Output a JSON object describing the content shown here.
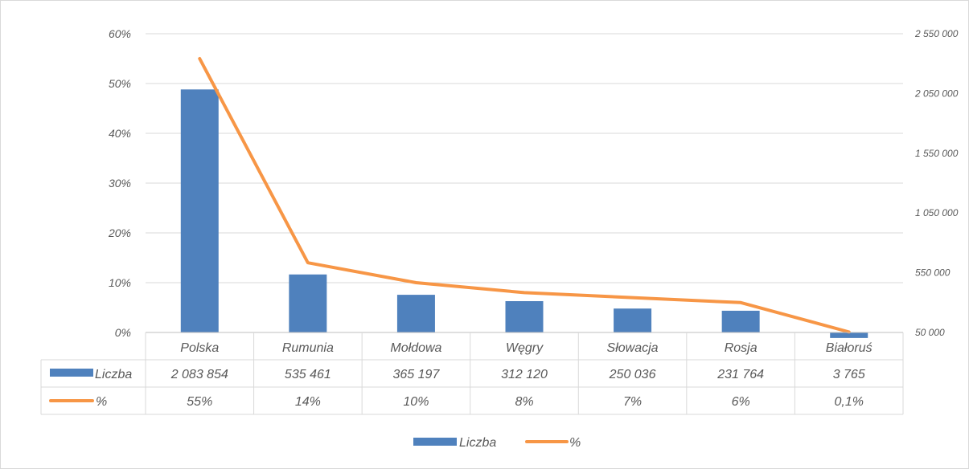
{
  "chart_data": {
    "type": "bar",
    "categories": [
      "Polska",
      "Rumunia",
      "Mołdowa",
      "Węgry",
      "Słowacja",
      "Rosja",
      "Białoruś"
    ],
    "series": [
      {
        "name": "Liczba",
        "type": "bar",
        "axis": "right",
        "color": "#4F81BD",
        "values": [
          2083854,
          535461,
          365197,
          312120,
          250036,
          231764,
          3765
        ],
        "labels": [
          "2 083 854",
          "535 461",
          "365 197",
          "312 120",
          "250 036",
          "231 764",
          "3 765"
        ]
      },
      {
        "name": "%",
        "type": "line",
        "axis": "left",
        "color": "#F79646",
        "values": [
          55,
          14,
          10,
          8,
          7,
          6,
          0.1
        ],
        "labels": [
          "55%",
          "14%",
          "10%",
          "8%",
          "7%",
          "6%",
          "0,1%"
        ]
      }
    ],
    "y_left": {
      "min": 0,
      "max": 60,
      "step": 10,
      "tick_labels": [
        "0%",
        "10%",
        "20%",
        "30%",
        "40%",
        "50%",
        "60%"
      ]
    },
    "y_right": {
      "min": 50000,
      "max": 2550000,
      "step": 500000,
      "tick_labels": [
        "50 000",
        "550 000",
        "1 050 000",
        "1 550 000",
        "2 050 000",
        "2 550 000"
      ]
    },
    "grid": true,
    "data_table": true,
    "legend": {
      "position": "bottom",
      "entries": [
        "Liczba",
        "%"
      ]
    },
    "title": "",
    "xlabel": "",
    "ylabel": ""
  }
}
